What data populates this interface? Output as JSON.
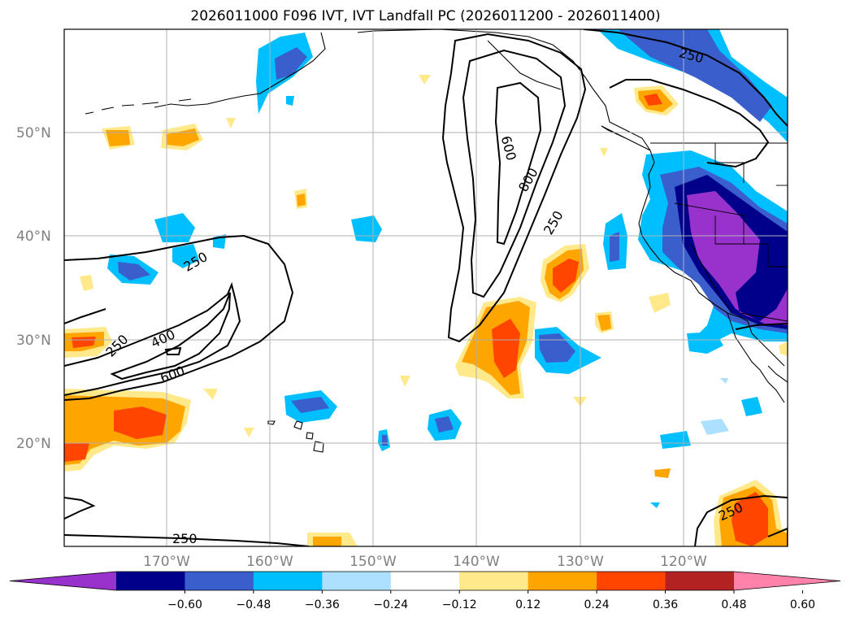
{
  "title": "2026011000 F096 IVT, IVT Landfall PC (2026011200 - 2026011400)",
  "lat_labels": [
    "50°N",
    "40°N",
    "30°N",
    "20°N"
  ],
  "lon_labels": [
    "170°W",
    "160°W",
    "150°W",
    "140°W",
    "130°W",
    "120°W"
  ],
  "colorbar": {
    "ticks": [
      "−0.60",
      "−0.48",
      "−0.36",
      "−0.24",
      "−0.12",
      "0.12",
      "0.24",
      "0.36",
      "0.48",
      "0.60"
    ],
    "colors": [
      "#9932CC",
      "#00008B",
      "#3A5FCD",
      "#00BFFF",
      "#ADDFFF",
      "#FFFFFF",
      "#FFE98A",
      "#FFA500",
      "#FF4500",
      "#B22222",
      "#FF82AB"
    ]
  },
  "contour_labels": {
    "c250_west_upper": "250",
    "c400_west": "400",
    "c250_west_lower": "250",
    "c600_west": "600",
    "c600_mid": "600",
    "c800_mid": "800",
    "c250_mid": "250",
    "c250_ne": "250",
    "c250_bottom": "250",
    "c250_se": "250"
  }
}
